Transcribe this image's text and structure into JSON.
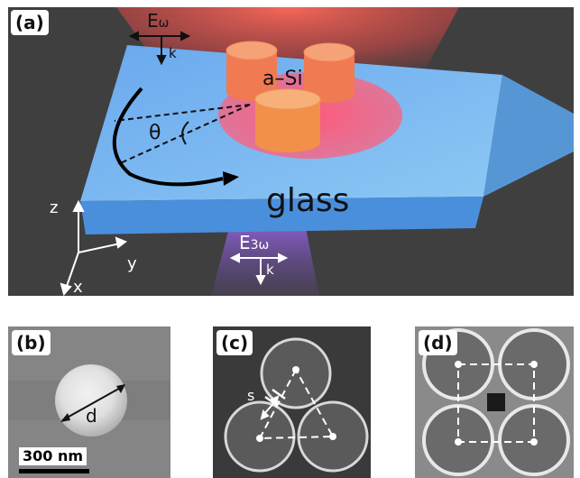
{
  "panel_a": {
    "label": "(a)",
    "incident_field": "E",
    "incident_sub": "ω",
    "incident_k": "k",
    "material_label": "a–Si",
    "angle_label": "θ",
    "substrate_label": "glass",
    "output_field": "E",
    "output_sub": "3ω",
    "output_k": "k",
    "axis_z": "z",
    "axis_y": "y",
    "axis_x": "x"
  },
  "panel_b": {
    "label": "(b)",
    "diameter_label": "d",
    "scale_label": "300 nm"
  },
  "panel_c": {
    "label": "(c)",
    "gap_label": "s"
  },
  "panel_d": {
    "label": "(d)"
  }
}
